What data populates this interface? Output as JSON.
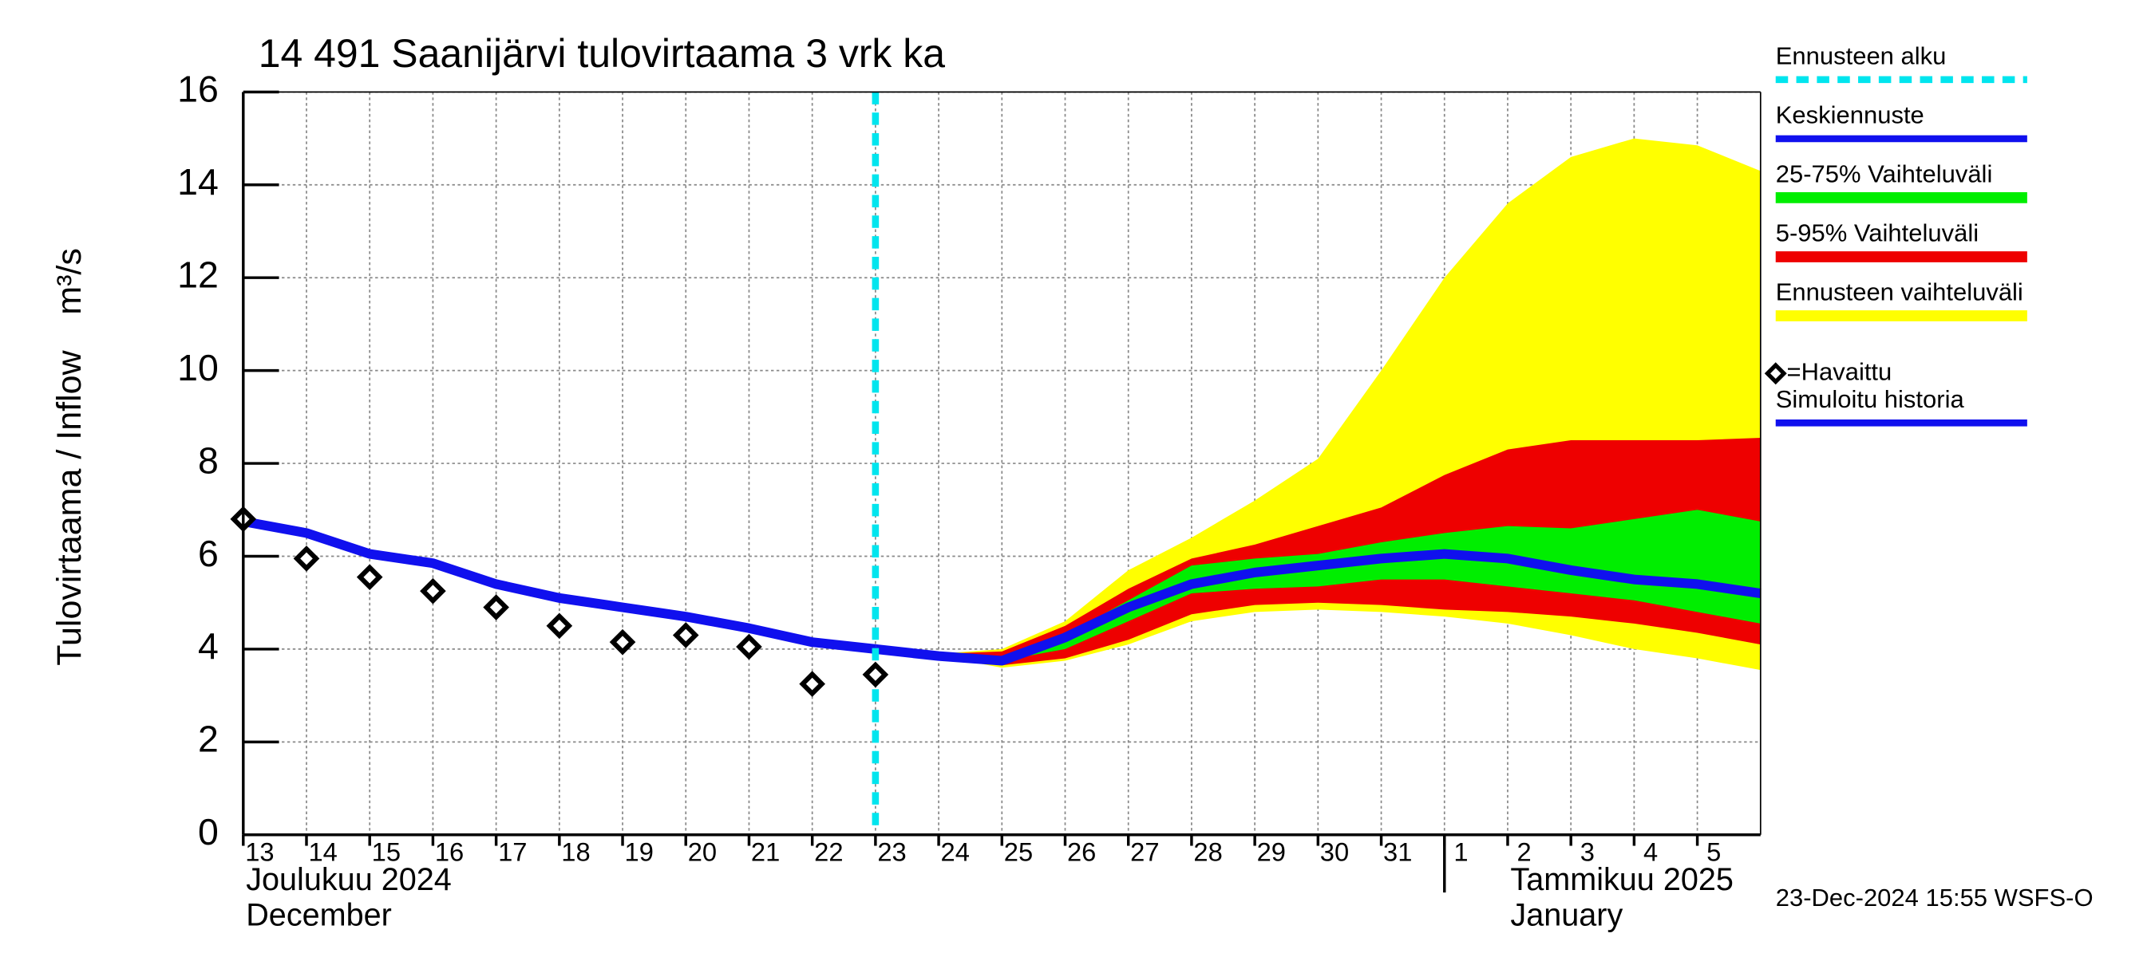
{
  "chart_data": {
    "type": "line",
    "title": "14 491 Saanijärvi tulovirtaama 3 vrk ka",
    "y_label": "Tulovirtaama / Inflow",
    "y_unit": "m³/s",
    "footer": "23-Dec-2024 15:55 WSFS-O",
    "month_labels": [
      {
        "x": "2024-12-13",
        "lines": [
          "Joulukuu  2024",
          "December"
        ]
      },
      {
        "x": "2025-01-02",
        "lines": [
          "Tammikuu  2025",
          "January"
        ]
      }
    ],
    "month_separator": "2025-01-01",
    "x": [
      "2024-12-13",
      "2024-12-14",
      "2024-12-15",
      "2024-12-16",
      "2024-12-17",
      "2024-12-18",
      "2024-12-19",
      "2024-12-20",
      "2024-12-21",
      "2024-12-22",
      "2024-12-23",
      "2024-12-24",
      "2024-12-25",
      "2024-12-26",
      "2024-12-27",
      "2024-12-28",
      "2024-12-29",
      "2024-12-30",
      "2024-12-31",
      "2025-01-01",
      "2025-01-02",
      "2025-01-03",
      "2025-01-04",
      "2025-01-05",
      "2025-01-06"
    ],
    "xlim": [
      "2024-12-13",
      "2025-01-06"
    ],
    "xticks": [
      {
        "value": "2024-12-13",
        "label": "13"
      },
      {
        "value": "2024-12-14",
        "label": "14"
      },
      {
        "value": "2024-12-15",
        "label": "15"
      },
      {
        "value": "2024-12-16",
        "label": "16"
      },
      {
        "value": "2024-12-17",
        "label": "17"
      },
      {
        "value": "2024-12-18",
        "label": "18"
      },
      {
        "value": "2024-12-19",
        "label": "19"
      },
      {
        "value": "2024-12-20",
        "label": "20"
      },
      {
        "value": "2024-12-21",
        "label": "21"
      },
      {
        "value": "2024-12-22",
        "label": "22"
      },
      {
        "value": "2024-12-23",
        "label": "23"
      },
      {
        "value": "2024-12-24",
        "label": "24"
      },
      {
        "value": "2024-12-25",
        "label": "25"
      },
      {
        "value": "2024-12-26",
        "label": "26"
      },
      {
        "value": "2024-12-27",
        "label": "27"
      },
      {
        "value": "2024-12-28",
        "label": "28"
      },
      {
        "value": "2024-12-29",
        "label": "29"
      },
      {
        "value": "2024-12-30",
        "label": "30"
      },
      {
        "value": "2024-12-31",
        "label": "31"
      },
      {
        "value": "2025-01-01",
        "label": "1"
      },
      {
        "value": "2025-01-02",
        "label": "2"
      },
      {
        "value": "2025-01-03",
        "label": "3"
      },
      {
        "value": "2025-01-04",
        "label": "4"
      },
      {
        "value": "2025-01-05",
        "label": "5"
      }
    ],
    "ylim": [
      0,
      16
    ],
    "yticks": [
      0,
      2,
      4,
      6,
      8,
      10,
      12,
      14,
      16
    ],
    "grid": true,
    "series": [
      {
        "name": "Ennusteen alku",
        "kind": "vline",
        "color": "#00e5ee",
        "at": "2024-12-23"
      },
      {
        "name": "Keskiennuste",
        "kind": "line",
        "color": "#1010ee",
        "values": [
          null,
          null,
          null,
          null,
          null,
          null,
          null,
          null,
          null,
          null,
          4.0,
          3.85,
          3.75,
          4.25,
          4.9,
          5.4,
          5.65,
          5.8,
          5.95,
          6.05,
          5.95,
          5.7,
          5.5,
          5.4,
          5.2
        ]
      },
      {
        "name": "25-75% Vaihteluväli",
        "kind": "band",
        "color": "#00ee00",
        "lower": [
          null,
          null,
          null,
          null,
          null,
          null,
          null,
          null,
          null,
          null,
          null,
          3.85,
          3.75,
          4.0,
          4.6,
          5.2,
          5.3,
          5.35,
          5.5,
          5.5,
          5.35,
          5.2,
          5.05,
          4.8,
          4.55
        ],
        "upper": [
          null,
          null,
          null,
          null,
          null,
          null,
          null,
          null,
          null,
          null,
          null,
          3.85,
          3.8,
          4.3,
          5.05,
          5.8,
          5.95,
          6.05,
          6.3,
          6.5,
          6.65,
          6.6,
          6.8,
          7.0,
          6.75
        ]
      },
      {
        "name": "5-95% Vaihteluväli",
        "kind": "band",
        "color": "#ee0000",
        "lower": [
          null,
          null,
          null,
          null,
          null,
          null,
          null,
          null,
          null,
          null,
          null,
          3.85,
          3.65,
          3.8,
          4.2,
          4.75,
          4.95,
          5.0,
          4.95,
          4.85,
          4.8,
          4.7,
          4.55,
          4.35,
          4.1
        ],
        "upper": [
          null,
          null,
          null,
          null,
          null,
          null,
          null,
          null,
          null,
          null,
          null,
          3.9,
          3.95,
          4.5,
          5.3,
          5.95,
          6.25,
          6.65,
          7.05,
          7.75,
          8.3,
          8.5,
          8.5,
          8.5,
          8.55
        ]
      },
      {
        "name": "Ennusteen vaihteluväli",
        "kind": "band",
        "color": "#ffff00",
        "lower": [
          null,
          null,
          null,
          null,
          null,
          null,
          null,
          null,
          null,
          null,
          null,
          3.85,
          3.6,
          3.75,
          4.1,
          4.6,
          4.8,
          4.85,
          4.8,
          4.7,
          4.55,
          4.3,
          4.0,
          3.8,
          3.55
        ],
        "upper": [
          null,
          null,
          null,
          null,
          null,
          null,
          null,
          null,
          null,
          null,
          null,
          3.9,
          4.0,
          4.6,
          5.7,
          6.4,
          7.2,
          8.1,
          10.0,
          12.0,
          13.6,
          14.6,
          15.0,
          14.85,
          14.3
        ]
      },
      {
        "name": "=Havaittu",
        "kind": "markers",
        "color": "#000000",
        "values": [
          6.8,
          5.95,
          5.55,
          5.25,
          4.9,
          4.5,
          4.15,
          4.3,
          4.05,
          3.25,
          3.45,
          null,
          null,
          null,
          null,
          null,
          null,
          null,
          null,
          null,
          null,
          null,
          null,
          null,
          null
        ]
      },
      {
        "name": "Simuloitu historia",
        "kind": "line",
        "color": "#1010ee",
        "values": [
          6.75,
          6.5,
          6.05,
          5.85,
          5.4,
          5.1,
          4.9,
          4.7,
          4.45,
          4.15,
          4.0,
          null,
          null,
          null,
          null,
          null,
          null,
          null,
          null,
          null,
          null,
          null,
          null,
          null,
          null
        ]
      }
    ]
  }
}
